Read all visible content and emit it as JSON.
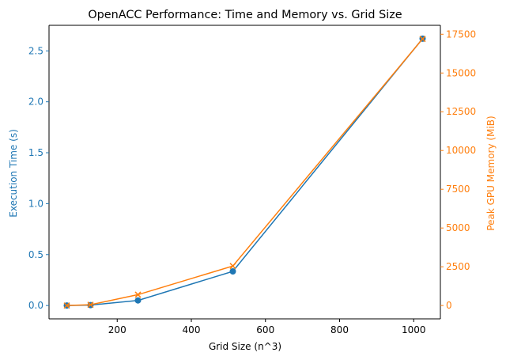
{
  "chart_data": {
    "type": "line",
    "title": "OpenACC Performance: Time and Memory vs. Grid Size",
    "xlabel": "Grid Size (n^3)",
    "ylabel": "Execution Time (s)",
    "y2label": "Peak GPU Memory (MiB)",
    "xlim": [
      16,
      1072
    ],
    "ylim": [
      -0.131,
      2.751
    ],
    "y2lim": [
      -861,
      18076
    ],
    "xticks": [
      200,
      400,
      600,
      800,
      1000
    ],
    "yticks": [
      0.0,
      0.5,
      1.0,
      1.5,
      2.0,
      2.5
    ],
    "y2ticks": [
      0,
      2500,
      5000,
      7500,
      10000,
      12500,
      15000,
      17500
    ],
    "grid": false,
    "x": [
      64,
      128,
      256,
      512,
      1024
    ],
    "series": [
      {
        "name": "Execution Time (s)",
        "axis": "left",
        "marker": "circle",
        "color": "#1f77b4",
        "values": [
          0.0,
          0.004,
          0.05,
          0.335,
          2.62
        ]
      },
      {
        "name": "Peak GPU Memory (MiB)",
        "axis": "right",
        "marker": "x",
        "color": "#ff7f0e",
        "values": [
          0,
          50,
          700,
          2550,
          17200
        ]
      }
    ]
  }
}
